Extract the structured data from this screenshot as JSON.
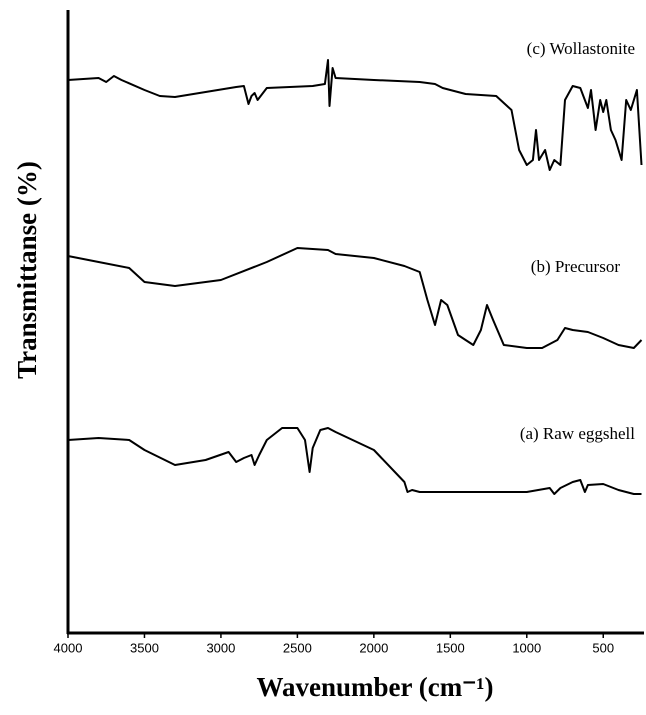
{
  "chart_data": {
    "type": "line",
    "xlabel": "Wavenumber (cm⁻¹)",
    "ylabel": "Transmittanse (%)",
    "xlim": [
      4000,
      240
    ],
    "ylim": [
      0,
      623
    ],
    "xticks": [
      4000,
      3500,
      3000,
      2500,
      2000,
      1500,
      1000,
      500
    ],
    "series": [
      {
        "name": "(c) Wollastonite",
        "color": "#000000",
        "x": [
          4000,
          3800,
          3750,
          3700,
          3650,
          3500,
          3400,
          3300,
          3100,
          2900,
          2850,
          2820,
          2800,
          2780,
          2760,
          2700,
          2400,
          2320,
          2300,
          2290,
          2270,
          2250,
          2000,
          1700,
          1600,
          1550,
          1500,
          1400,
          1200,
          1100,
          1050,
          1000,
          960,
          940,
          920,
          880,
          850,
          820,
          780,
          750,
          700,
          650,
          600,
          580,
          550,
          520,
          500,
          480,
          450,
          420,
          380,
          350,
          320,
          280,
          250
        ],
        "values": [
          553,
          555,
          551,
          557,
          553,
          543,
          537,
          536,
          541,
          546,
          547,
          529,
          537,
          540,
          533,
          545,
          547,
          549,
          573,
          527,
          565,
          555,
          553,
          551,
          549,
          545,
          543,
          539,
          537,
          523,
          483,
          468,
          473,
          503,
          473,
          483,
          463,
          473,
          468,
          533,
          547,
          545,
          525,
          543,
          503,
          533,
          521,
          533,
          503,
          493,
          473,
          533,
          523,
          543,
          468
        ]
      },
      {
        "name": "(b) Precursor",
        "color": "#000000",
        "x": [
          4000,
          3800,
          3600,
          3500,
          3300,
          3000,
          2700,
          2500,
          2300,
          2250,
          2000,
          1800,
          1700,
          1650,
          1600,
          1560,
          1520,
          1450,
          1400,
          1350,
          1300,
          1260,
          1220,
          1150,
          1000,
          900,
          800,
          750,
          700,
          600,
          500,
          400,
          300,
          250
        ],
        "values": [
          377,
          371,
          365,
          351,
          347,
          353,
          371,
          385,
          383,
          379,
          375,
          367,
          361,
          333,
          308,
          333,
          328,
          298,
          293,
          288,
          303,
          328,
          313,
          288,
          285,
          285,
          293,
          305,
          303,
          301,
          295,
          288,
          285,
          293
        ]
      },
      {
        "name": "(a) Raw eggshell",
        "color": "#000000",
        "x": [
          4000,
          3800,
          3600,
          3500,
          3300,
          3100,
          2950,
          2900,
          2850,
          2800,
          2780,
          2750,
          2700,
          2600,
          2500,
          2450,
          2420,
          2400,
          2350,
          2300,
          2250,
          2000,
          1800,
          1780,
          1750,
          1700,
          1500,
          1000,
          850,
          820,
          780,
          700,
          650,
          620,
          600,
          500,
          400,
          300,
          250
        ],
        "values": [
          193,
          195,
          193,
          183,
          168,
          173,
          181,
          171,
          175,
          178,
          168,
          178,
          193,
          205,
          205,
          193,
          161,
          185,
          203,
          205,
          201,
          183,
          151,
          141,
          143,
          141,
          141,
          141,
          145,
          139,
          145,
          151,
          153,
          141,
          148,
          149,
          143,
          139,
          139
        ]
      }
    ]
  }
}
